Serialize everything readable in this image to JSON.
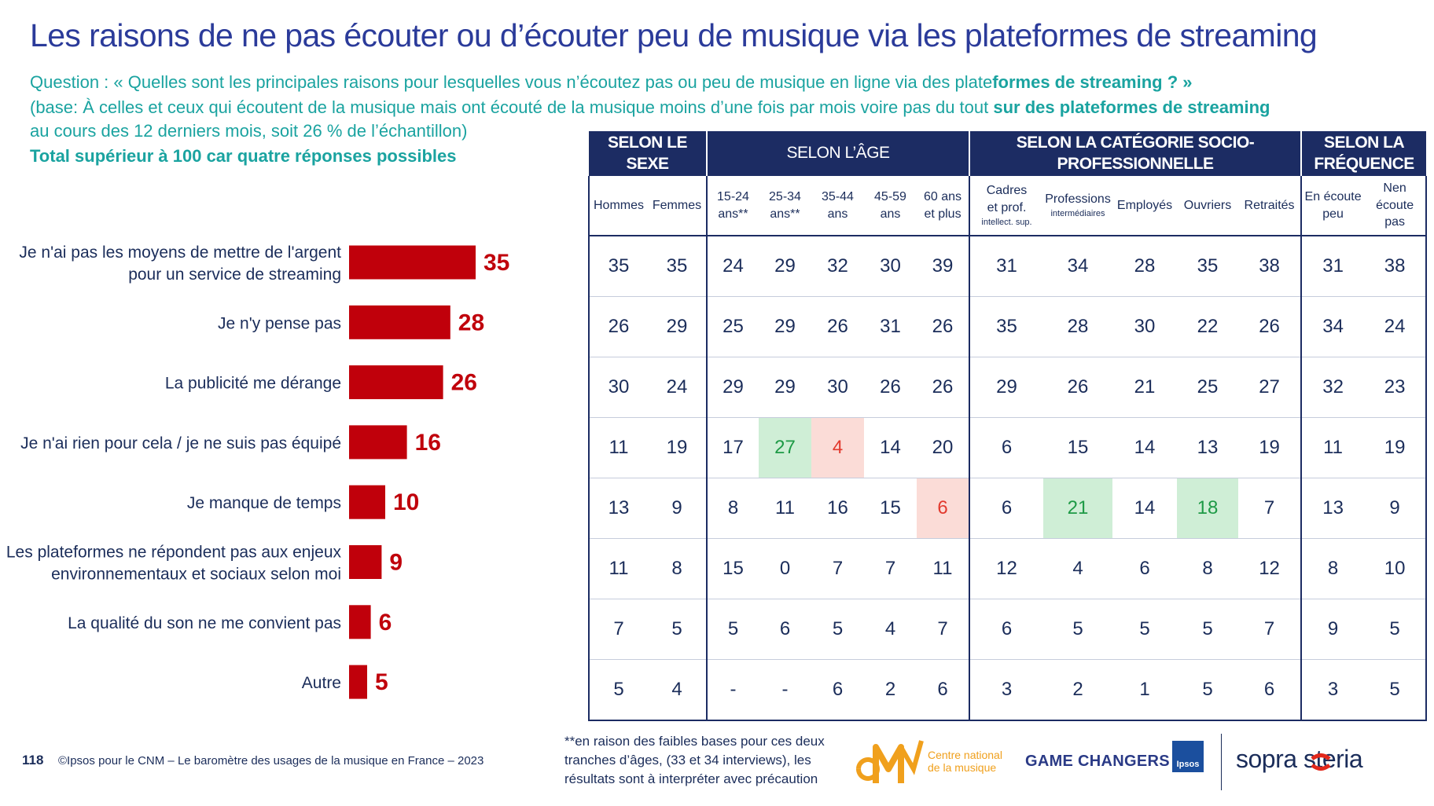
{
  "title": "Les raisons de ne pas écouter ou d’écouter peu de musique via les plateformes de streaming",
  "subtitle": {
    "line1a": "Question : « Quelles sont les principales raisons pour lesquelles vous n’écoutez pas ou peu de musique en ligne via des plate",
    "line1b": "formes de streaming ?  »",
    "line2a": "(base: À celles et ceux qui écoutent de la musique mais ont écouté de la musique moins d’une fois par mois voire pas du tout ",
    "line2b": "sur des plateformes de streaming",
    "line3": "au cours des 12 derniers mois, soit 26 % de l’échantillon)",
    "line4": "Total supérieur à 100 car quatre réponses possibles"
  },
  "colors": {
    "bar": "#c0000b",
    "title": "#2b3b9a",
    "subtitle": "#1aa3a0",
    "header_bg": "#1c2c63",
    "highlight_green": "#cfeed6",
    "highlight_red": "#fbdcd7"
  },
  "chart_data": {
    "type": "bar",
    "orientation": "horizontal",
    "categories": [
      "Je n'ai pas les moyens de mettre de l'argent pour un service de streaming",
      "Je n'y pense pas",
      "La publicité me dérange",
      "Je n'ai rien pour cela / je ne suis pas équipé",
      "Je manque de temps",
      "Les plateformes ne répondent pas aux enjeux environnementaux et sociaux selon moi",
      "La qualité du son ne me convient pas",
      "Autre"
    ],
    "category_lines": [
      [
        "Je n'ai pas les moyens de mettre de l'argent",
        "pour un service de streaming"
      ],
      [
        "Je n'y pense pas"
      ],
      [
        "La publicité me dérange"
      ],
      [
        "Je n'ai rien pour cela / je ne suis pas équipé"
      ],
      [
        "Je manque de temps"
      ],
      [
        "Les plateformes ne répondent pas aux enjeux",
        "environnementaux et sociaux selon moi"
      ],
      [
        "La qualité du son ne me convient pas"
      ],
      [
        "Autre"
      ]
    ],
    "values": [
      35,
      28,
      26,
      16,
      10,
      9,
      6,
      5
    ],
    "data_labels": [
      "35",
      "28",
      "26",
      "16",
      "10",
      "9",
      "6",
      "5"
    ]
  },
  "table": {
    "groups": [
      {
        "label": "SELON LE SEXE",
        "span": 2
      },
      {
        "label": "SELON L’ÂGE",
        "span": 5
      },
      {
        "label": "SELON LA CATÉGORIE SOCIO-PROFESSIONNELLE",
        "label_line1": "SELON LA CATÉGORIE SOCIO-",
        "label_line2": "PROFESSIONNELLE",
        "span": 5
      },
      {
        "label": "SELON LA FRÉQUENCE",
        "label_line1": "SELON LA",
        "label_line2": "FRÉQUENCE",
        "span": 2
      }
    ],
    "columns": [
      {
        "l1": "Hommes"
      },
      {
        "l1": "Femmes"
      },
      {
        "l1": "15-24",
        "l2": "ans**"
      },
      {
        "l1": "25-34",
        "l2": "ans**"
      },
      {
        "l1": "35-44",
        "l2": "ans"
      },
      {
        "l1": "45-59",
        "l2": "ans"
      },
      {
        "l1": "60 ans",
        "l2": "et plus"
      },
      {
        "l1": "Cadres",
        "l2": "et prof.",
        "l3": "intellect. sup."
      },
      {
        "l1": "Professions",
        "l2": "intermédiaires"
      },
      {
        "l1": "Employés"
      },
      {
        "l1": "Ouvriers"
      },
      {
        "l1": "Retraités"
      },
      {
        "l1": "En écoute",
        "l2": "peu"
      },
      {
        "l1": "Nen",
        "l2": "écoute pas"
      }
    ],
    "rows": [
      [
        "35",
        "35",
        "24",
        "29",
        "32",
        "30",
        "39",
        "31",
        "34",
        "28",
        "35",
        "38",
        "31",
        "38"
      ],
      [
        "26",
        "29",
        "25",
        "29",
        "26",
        "31",
        "26",
        "35",
        "28",
        "30",
        "22",
        "26",
        "34",
        "24"
      ],
      [
        "30",
        "24",
        "29",
        "29",
        "30",
        "26",
        "26",
        "29",
        "26",
        "21",
        "25",
        "27",
        "32",
        "23"
      ],
      [
        "11",
        "19",
        "17",
        "27",
        "4",
        "14",
        "20",
        "6",
        "15",
        "14",
        "13",
        "19",
        "11",
        "19"
      ],
      [
        "13",
        "9",
        "8",
        "11",
        "16",
        "15",
        "6",
        "6",
        "21",
        "14",
        "18",
        "7",
        "13",
        "9"
      ],
      [
        "11",
        "8",
        "15",
        "0",
        "7",
        "7",
        "11",
        "12",
        "4",
        "6",
        "8",
        "12",
        "8",
        "10"
      ],
      [
        "7",
        "5",
        "5",
        "6",
        "5",
        "4",
        "7",
        "6",
        "5",
        "5",
        "5",
        "7",
        "9",
        "5"
      ],
      [
        "5",
        "4",
        "-",
        "-",
        "6",
        "2",
        "6",
        "3",
        "2",
        "1",
        "5",
        "6",
        "3",
        "5"
      ]
    ],
    "highlights": {
      "green": [
        "3-3",
        "4-8",
        "4-10"
      ],
      "red": [
        "3-4",
        "4-6"
      ]
    }
  },
  "footer": {
    "page_number": "118",
    "credit": "©Ipsos pour le CNM – Le baromètre des usages de la musique en France – 2023",
    "footnote": "**en raison des faibles bases pour ces deux tranches d’âges, (33 et 34 interviews), les résultats sont à interpréter avec précaution",
    "cnm_line1": "Centre national",
    "cnm_line2": "de la musique",
    "game_changers": "GAME CHANGERS",
    "ipsos": "Ipsos",
    "sopra_steria": "sopra  steria"
  }
}
